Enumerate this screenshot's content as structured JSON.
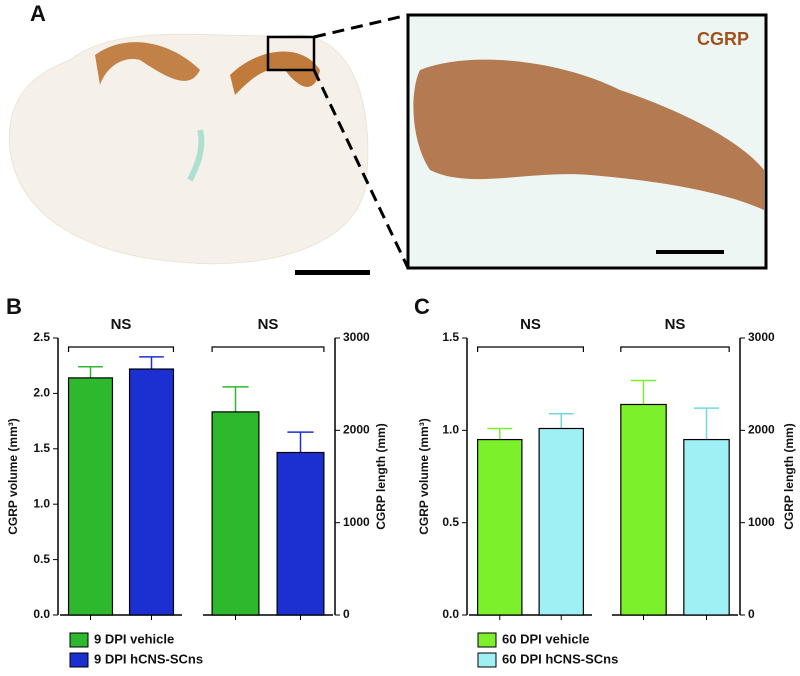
{
  "figure": {
    "panel_a": "A",
    "inset_label": "CGRP"
  },
  "chart_data": [
    {
      "type": "bar",
      "panel": "B",
      "ylabel": "CGRP volume (mm³)",
      "y2label": "CGRP length (mm)",
      "ylim": [
        0,
        2.5
      ],
      "yticks": [
        {
          "value": 0,
          "label": "0.0"
        },
        {
          "value": 0.5,
          "label": "0.5"
        },
        {
          "value": 1,
          "label": "1.0"
        },
        {
          "value": 1.5,
          "label": "1.5"
        },
        {
          "value": 2,
          "label": "2.0"
        },
        {
          "value": 2.5,
          "label": "2.5"
        }
      ],
      "y2lim": [
        0,
        3000
      ],
      "y2ticks": [
        0,
        1000,
        2000,
        3000
      ],
      "value_axes": [
        "y",
        "y2"
      ],
      "annotations": [
        "NS",
        "NS"
      ],
      "series": [
        {
          "name": "9 DPI vehicle",
          "color": "#2db82d",
          "values": [
            2.14,
            2200
          ],
          "errors": [
            0.1,
            270
          ]
        },
        {
          "name": "9 DPI hCNS-SCns",
          "color": "#1c2fd1",
          "values": [
            2.22,
            1760
          ],
          "errors": [
            0.11,
            220
          ]
        }
      ]
    },
    {
      "type": "bar",
      "panel": "C",
      "ylabel": "CGRP volume (mm³)",
      "y2label": "CGRP length (mm)",
      "ylim": [
        0,
        1.5
      ],
      "yticks": [
        {
          "value": 0,
          "label": "0.0"
        },
        {
          "value": 0.5,
          "label": "0.5"
        },
        {
          "value": 1,
          "label": "1.0"
        },
        {
          "value": 1.5,
          "label": "1.5"
        }
      ],
      "y2lim": [
        0,
        3000
      ],
      "y2ticks": [
        0,
        1000,
        2000,
        3000
      ],
      "value_axes": [
        "y",
        "y2"
      ],
      "annotations": [
        "NS",
        "NS"
      ],
      "series": [
        {
          "name": "60 DPI  vehicle",
          "color": "#7cf02a",
          "values": [
            0.95,
            2280
          ],
          "errors": [
            0.06,
            260
          ]
        },
        {
          "name": "60 DPI hCNS-SCns",
          "color": "#9ff0f5",
          "values": [
            1.01,
            1900
          ],
          "errors": [
            0.08,
            340
          ]
        }
      ]
    }
  ]
}
